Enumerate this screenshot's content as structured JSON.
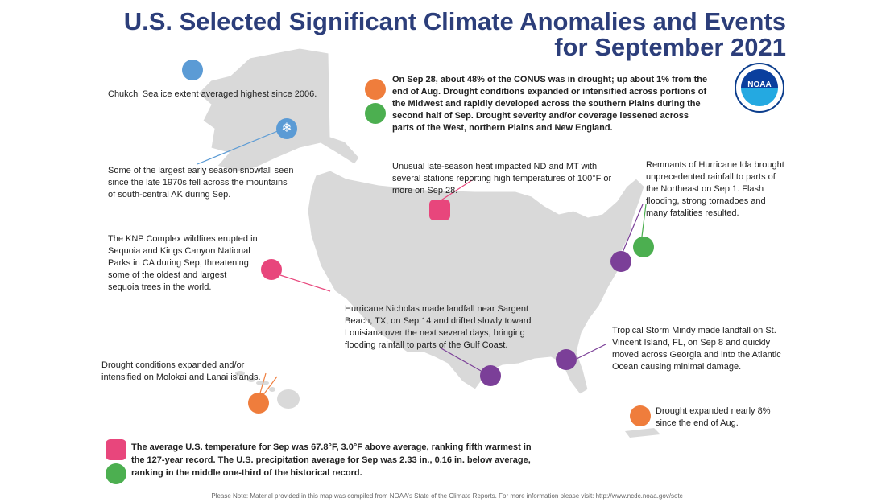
{
  "title_line1": "U.S. Selected Significant Climate Anomalies and Events",
  "title_line2": "for September 2021",
  "logo_text": "NOAA",
  "events": {
    "chukchi": "Chukchi Sea ice extent averaged highest since 2006.",
    "snowfall": "Some of the largest early season snowfall seen since the late 1970s fell across the mountains of south-central AK during Sep.",
    "drought_conus": "On Sep 28, about 48% of the CONUS was in drought; up about 1% from the end of Aug. Drought conditions expanded or intensified across portions of the Midwest and rapidly developed across the southern Plains during the second half of Sep. Drought severity and/or coverage lessened across parts of the West, northern Plains and New England.",
    "heat": "Unusual late-season heat impacted ND and MT with several stations reporting high temperatures of 100°F or more on Sep 28.",
    "ida": "Remnants of Hurricane Ida brought unprecedented rainfall to parts of the Northeast on Sep 1. Flash flooding, strong tornadoes and many fatalities resulted.",
    "knp": "The KNP Complex wildfires erupted in Sequoia and Kings Canyon National Parks in CA during Sep, threatening some of the oldest and largest sequoia trees in the world.",
    "nicholas": "Hurricane Nicholas made landfall near Sargent Beach, TX, on Sep 14 and drifted slowly toward Louisiana over the next several days, bringing flooding rainfall to parts of the Gulf Coast.",
    "mindy": "Tropical Storm Mindy made landfall on St. Vincent Island, FL, on Sep 8 and quickly moved across Georgia and into the Atlantic Ocean causing minimal damage.",
    "hawaii": "Drought conditions expanded and/or intensified on Molokai and Lanai islands.",
    "puerto_rico": "Drought expanded nearly 8% since the end of Aug."
  },
  "summary": "The average U.S. temperature for Sep was 67.8°F, 3.0°F above average, ranking fifth warmest in the 127-year record. The U.S. precipitation average for Sep was 2.33 in., 0.16 in. below average, ranking in the middle one-third of the historical record.",
  "footer": "Please Note: Material provided in this map was compiled from NOAA's State of the Climate Reports. For more information please visit: http://www.ncdc.noaa.gov/sotc",
  "colors": {
    "title": "#2c3e7a",
    "land": "#d9d9d9",
    "drought_orange": "#ef7d3c",
    "wet_green": "#4caf50",
    "heat_pink": "#e8467c",
    "storm_purple": "#7b3f98",
    "ice_blue": "#5b9bd5"
  },
  "icons": {
    "ice": "ice-icon",
    "snow": "snowflake-icon",
    "drought": "drought-icon",
    "wet": "wet-icon",
    "heat": "thermometer-icon",
    "flood": "flood-icon",
    "tornado": "tornado-icon",
    "fire": "wildfire-icon",
    "hurricane": "hurricane-icon"
  }
}
